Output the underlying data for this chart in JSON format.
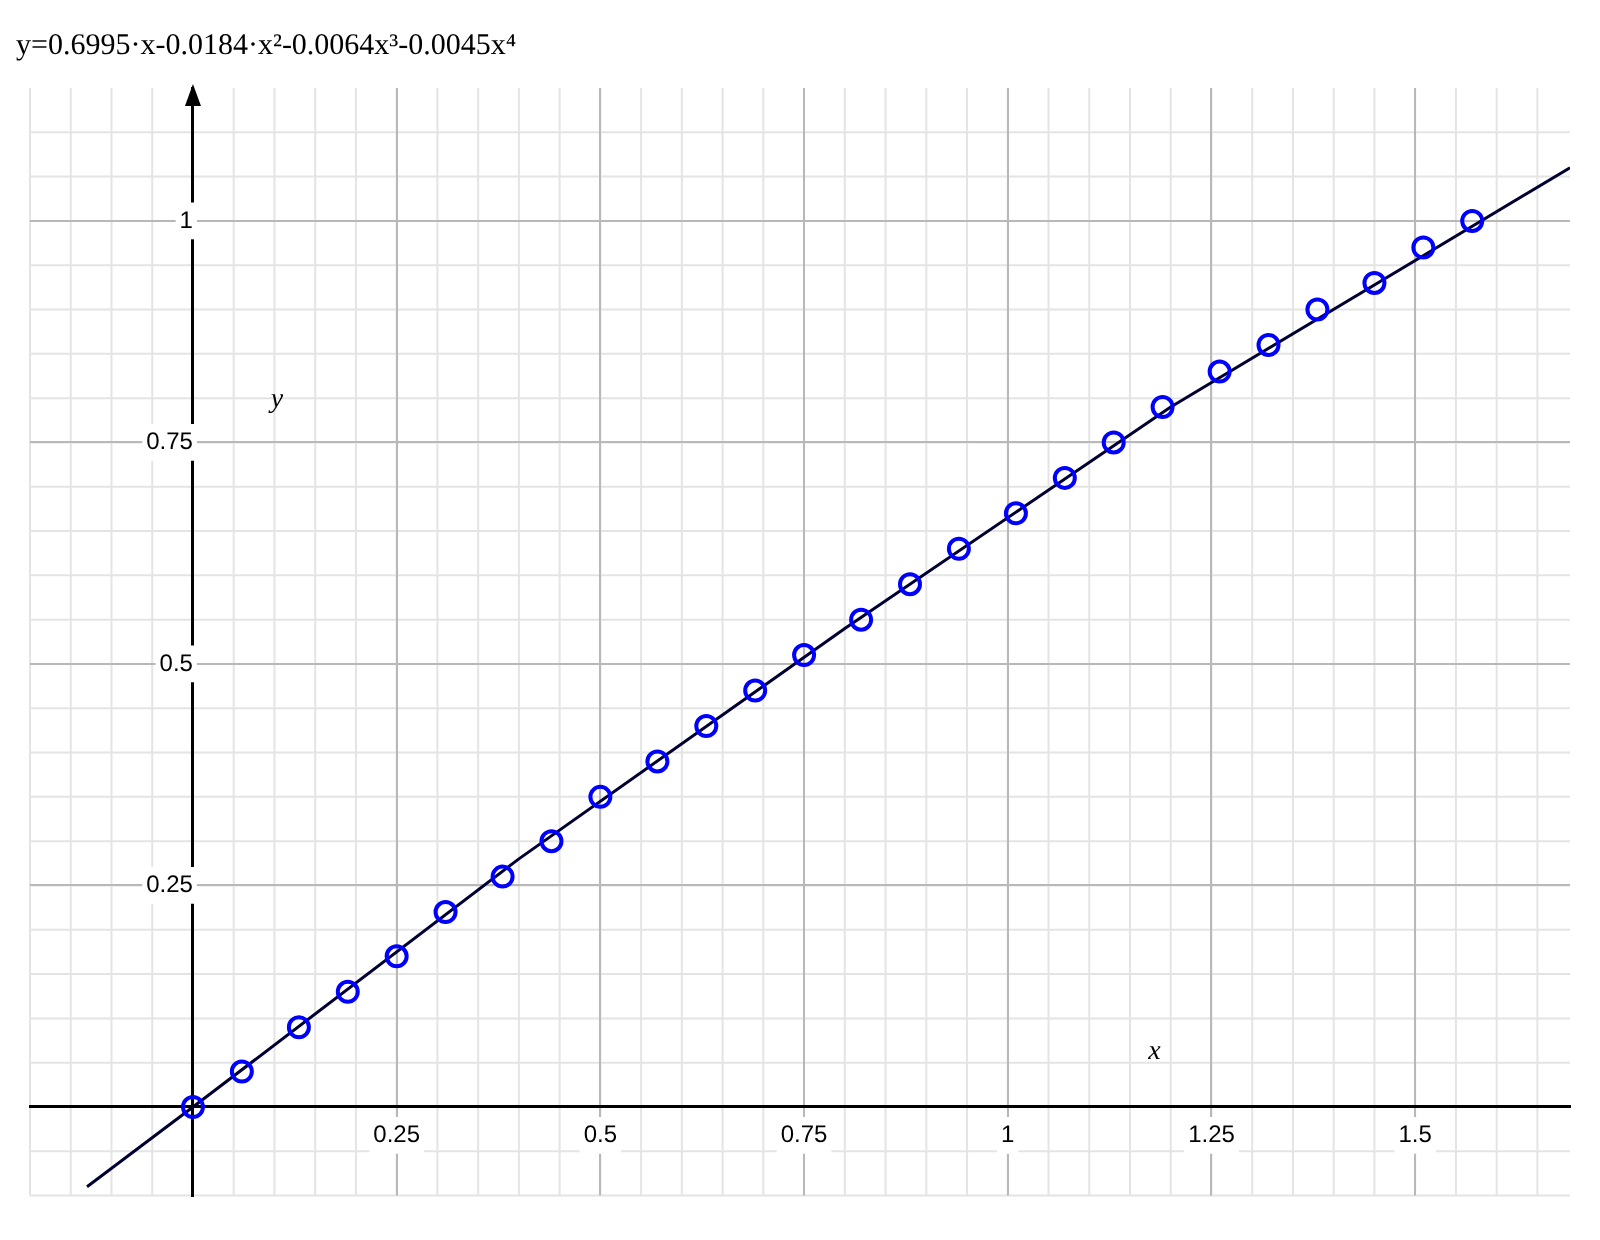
{
  "chart_data": {
    "type": "scatter",
    "title": "y=0.6995·x-0.0184·x²-0.0064x³-0.0045x⁴",
    "xlabel": "x",
    "ylabel": "y",
    "xlim": [
      -0.2,
      1.69
    ],
    "ylim": [
      -0.1,
      1.15
    ],
    "xticks": [
      0.25,
      0.5,
      0.75,
      1,
      1.25,
      1.5
    ],
    "yticks": [
      0.25,
      0.5,
      0.75,
      1
    ],
    "grid": true,
    "legend": false,
    "series": [
      {
        "type": "line",
        "color": "#000033",
        "marker": "none",
        "x": [
          -0.13,
          0,
          0.4,
          0.8,
          1.2,
          1.69
        ],
        "values": [
          -0.09,
          0,
          0.28,
          0.54,
          0.79,
          1.06
        ]
      },
      {
        "color": "#0000ff",
        "marker": "circle",
        "x": [
          0,
          0.06,
          0.13,
          0.19,
          0.25,
          0.31,
          0.38,
          0.44,
          0.5,
          0.57,
          0.63,
          0.69,
          0.75,
          0.82,
          0.88,
          0.94,
          1.01,
          1.07,
          1.13,
          1.19,
          1.26,
          1.32,
          1.38,
          1.45,
          1.51,
          1.57
        ],
        "values": [
          0,
          0.04,
          0.09,
          0.13,
          0.17,
          0.22,
          0.26,
          0.3,
          0.35,
          0.39,
          0.43,
          0.47,
          0.51,
          0.55,
          0.59,
          0.63,
          0.67,
          0.71,
          0.75,
          0.79,
          0.83,
          0.86,
          0.9,
          0.93,
          0.97,
          1.0
        ]
      }
    ]
  }
}
